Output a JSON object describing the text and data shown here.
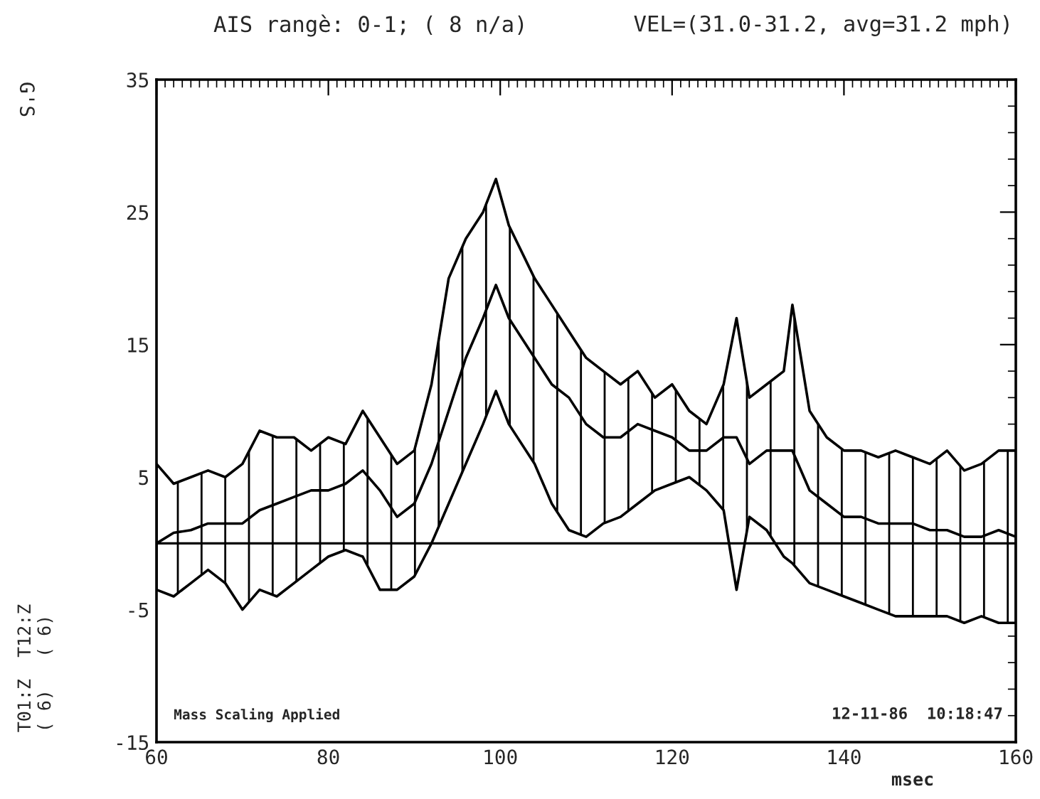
{
  "chart_data": {
    "type": "line",
    "title": "AIS rangè: 0-1; ( 8 n/a)",
    "subtitle": "VEL=(31.0-31.2, avg=31.2 mph)",
    "ylabel": "G'S",
    "xlabel": "msec",
    "annotations": [
      "Mass Scaling Applied",
      "12-11-86  10:18:47",
      "T01:Z  T12:Z\n( 6)   ( 6)"
    ],
    "x": [
      60,
      62,
      64,
      66,
      68,
      70,
      72,
      74,
      76,
      78,
      80,
      82,
      84,
      86,
      88,
      90,
      92,
      94,
      96,
      98,
      99.5,
      101,
      104,
      106,
      108,
      110,
      112,
      114,
      116,
      118,
      120,
      122,
      124,
      126,
      127.5,
      129,
      131,
      133,
      134,
      136,
      138,
      140,
      142,
      144,
      146,
      148,
      150,
      152,
      154,
      156,
      158,
      160
    ],
    "series": [
      {
        "color": "#000000",
        "values": [
          0,
          0.8,
          1,
          1.5,
          1.5,
          1.5,
          2.5,
          3,
          3.5,
          4,
          4,
          4.5,
          5.5,
          4,
          2,
          3,
          6,
          10,
          14,
          17,
          19.5,
          17,
          14,
          12,
          11,
          9,
          8,
          8,
          9,
          8.5,
          8,
          7,
          7,
          8,
          8,
          6,
          7,
          7,
          7,
          4,
          3,
          2,
          2,
          1.5,
          1.5,
          1.5,
          1,
          1,
          0.5,
          0.5,
          1,
          0.5
        ],
        "upper": [
          6,
          4.5,
          5,
          5.5,
          5,
          6,
          8.5,
          8,
          8,
          7,
          8,
          7.5,
          10,
          8,
          6,
          7,
          12,
          20,
          23,
          25,
          27.5,
          24,
          20,
          18,
          16,
          14,
          13,
          12,
          13,
          11,
          12,
          10,
          9,
          12,
          17,
          11,
          12,
          13,
          18,
          10,
          8,
          7,
          7,
          6.5,
          7,
          6.5,
          6,
          7,
          5.5,
          6,
          7,
          7
        ],
        "lower": [
          -3.5,
          -4,
          -3,
          -2,
          -3,
          -5,
          -3.5,
          -4,
          -3,
          -2,
          -1,
          -0.5,
          -1,
          -3.5,
          -3.5,
          -2.5,
          0,
          3,
          6,
          9,
          11.5,
          9,
          6,
          3,
          1,
          0.5,
          1.5,
          2,
          3,
          4,
          4.5,
          5,
          4,
          2.5,
          -3.5,
          2,
          1,
          -1,
          -1.5,
          -3,
          -3.5,
          -4,
          -4.5,
          -5,
          -5.5,
          -5.5,
          -5.5,
          -5.5,
          -6,
          -5.5,
          -6,
          -6
        ]
      }
    ],
    "xlim": [
      60,
      160
    ],
    "xticks": [
      60,
      80,
      100,
      120,
      140,
      160
    ],
    "ylim": [
      -15,
      35
    ],
    "yticks": [
      -15,
      -5,
      5,
      15,
      25,
      35
    ],
    "ref_lines": [
      {
        "axis": "y",
        "value": 0,
        "color": "#000000"
      }
    ],
    "grid": false,
    "legend": false,
    "marker": "none",
    "line_style": "solid"
  }
}
